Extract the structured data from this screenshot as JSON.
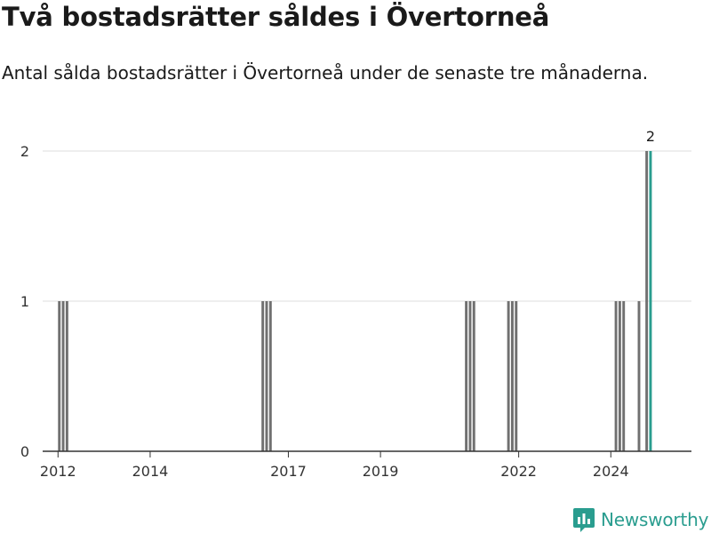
{
  "title": "Två bostadsrätter såldes i Övertorneå",
  "subtitle": "Antal sålda bostadsrätter i Övertorneå under de senaste tre månaderna.",
  "brand": {
    "name": "Newsworthy",
    "logo_icon": "newsworthy-logo-icon",
    "color": "#2a9d8f"
  },
  "chart_data": {
    "type": "bar",
    "title": "Två bostadsrätter såldes i Övertorneå",
    "subtitle": "Antal sålda bostadsrätter i Övertorneå under de senaste tre månaderna.",
    "xlabel": "",
    "ylabel": "",
    "ylim": [
      0,
      2
    ],
    "xlim": [
      "2011-09",
      "2025-10"
    ],
    "grid": true,
    "legend": "none",
    "x_ticks": [
      {
        "value": "2012-01",
        "label": "2012"
      },
      {
        "value": "2014-01",
        "label": "2014"
      },
      {
        "value": "2017-01",
        "label": "2017"
      },
      {
        "value": "2019-01",
        "label": "2019"
      },
      {
        "value": "2022-01",
        "label": "2022"
      },
      {
        "value": "2024-01",
        "label": "2024"
      }
    ],
    "y_ticks": [
      0,
      1,
      2
    ],
    "colors": {
      "default": "#707070",
      "highlight": "#2a9d8f",
      "grid": "#dddddd",
      "axis": "#333333"
    },
    "bars": [
      {
        "x": "2012-01",
        "y": 1
      },
      {
        "x": "2012-02",
        "y": 1
      },
      {
        "x": "2012-03",
        "y": 1
      },
      {
        "x": "2016-06",
        "y": 1
      },
      {
        "x": "2016-07",
        "y": 1
      },
      {
        "x": "2016-08",
        "y": 1
      },
      {
        "x": "2020-11",
        "y": 1
      },
      {
        "x": "2020-12",
        "y": 1
      },
      {
        "x": "2021-01",
        "y": 1
      },
      {
        "x": "2021-10",
        "y": 1
      },
      {
        "x": "2021-11",
        "y": 1
      },
      {
        "x": "2021-12",
        "y": 1
      },
      {
        "x": "2024-02",
        "y": 1
      },
      {
        "x": "2024-03",
        "y": 1
      },
      {
        "x": "2024-04",
        "y": 1
      },
      {
        "x": "2024-08",
        "y": 1
      },
      {
        "x": "2024-10",
        "y": 2
      },
      {
        "x": "2024-11",
        "y": 2,
        "highlight": true
      }
    ],
    "data_labels": [
      {
        "x": "2024-11",
        "text": "2"
      }
    ]
  }
}
